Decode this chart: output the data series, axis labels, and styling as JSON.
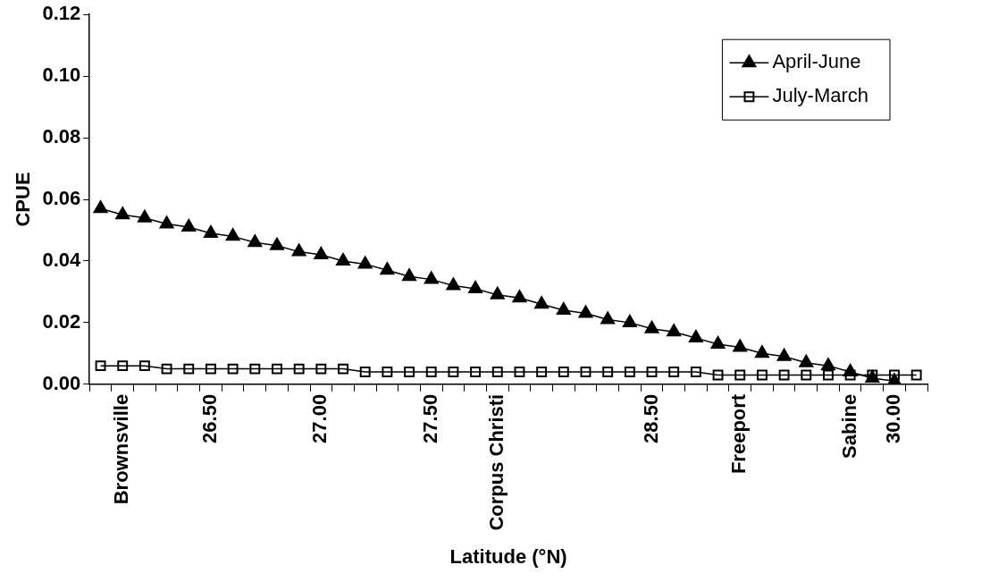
{
  "chart_data": {
    "type": "line",
    "xlabel": "Latitude (°N)",
    "ylabel": "CPUE",
    "categories": [
      null,
      "Brownsville",
      null,
      null,
      null,
      "26.50",
      null,
      null,
      null,
      null,
      "27.00",
      null,
      null,
      null,
      null,
      "27.50",
      null,
      null,
      "Corpus Christi",
      null,
      null,
      null,
      null,
      null,
      null,
      "28.50",
      null,
      null,
      null,
      "Freeport",
      null,
      null,
      null,
      null,
      "Sabine",
      null,
      "30.00",
      null
    ],
    "series": [
      {
        "name": "April-June",
        "color": "#000000",
        "marker": "triangle",
        "values": [
          0.057,
          0.055,
          0.054,
          0.052,
          0.051,
          0.049,
          0.048,
          0.046,
          0.045,
          0.043,
          0.042,
          0.04,
          0.039,
          0.037,
          0.035,
          0.034,
          0.032,
          0.031,
          0.029,
          0.028,
          0.026,
          0.024,
          0.023,
          0.021,
          0.02,
          0.018,
          0.017,
          0.015,
          0.013,
          0.012,
          0.01,
          0.009,
          0.007,
          0.006,
          0.004,
          0.002,
          0.001,
          null
        ]
      },
      {
        "name": "July-March",
        "color": "#000000",
        "marker": "square",
        "values": [
          0.006,
          0.006,
          0.006,
          0.005,
          0.005,
          0.005,
          0.005,
          0.005,
          0.005,
          0.005,
          0.005,
          0.005,
          0.004,
          0.004,
          0.004,
          0.004,
          0.004,
          0.004,
          0.004,
          0.004,
          0.004,
          0.004,
          0.004,
          0.004,
          0.004,
          0.004,
          0.004,
          0.004,
          0.003,
          0.003,
          0.003,
          0.003,
          0.003,
          0.003,
          0.003,
          0.003,
          0.003,
          0.003
        ]
      }
    ],
    "ylim": [
      0,
      0.12
    ],
    "yticks": [
      {
        "value": 0,
        "label": "0.00"
      },
      {
        "value": 0.02,
        "label": "0.02"
      },
      {
        "value": 0.04,
        "label": "0.04"
      },
      {
        "value": 0.06,
        "label": "0.06"
      },
      {
        "value": 0.08,
        "label": "0.08"
      },
      {
        "value": 0.1,
        "label": "0.10"
      },
      {
        "value": 0.12,
        "label": "0.12"
      }
    ],
    "grid": false,
    "legend": "top right",
    "line_style": "solid"
  }
}
